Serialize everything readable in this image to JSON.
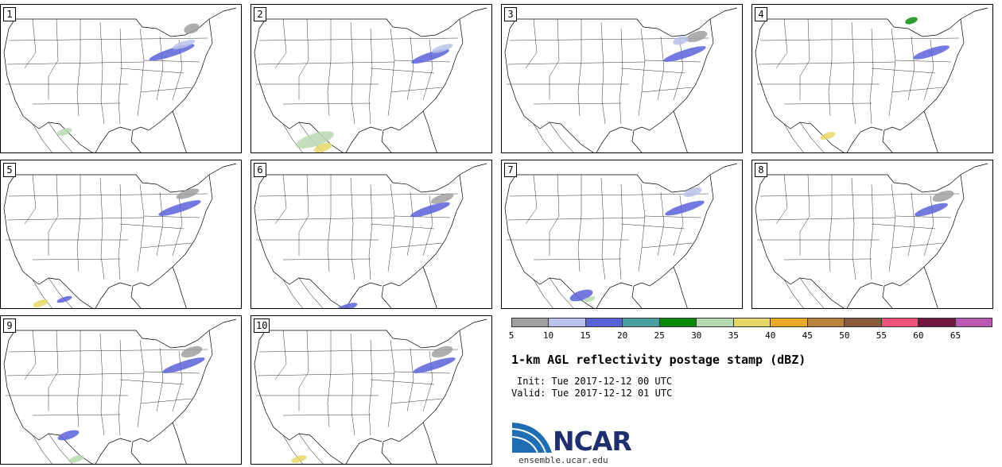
{
  "panels": [
    {
      "label": "1"
    },
    {
      "label": "2"
    },
    {
      "label": "3"
    },
    {
      "label": "4"
    },
    {
      "label": "5"
    },
    {
      "label": "6"
    },
    {
      "label": "7"
    },
    {
      "label": "8"
    },
    {
      "label": "9"
    },
    {
      "label": "10"
    }
  ],
  "colorbar": {
    "colors": [
      "#a0a0a0",
      "#b8c2ea",
      "#5a62d8",
      "#4a9ea0",
      "#0a8a0a",
      "#b8d8b0",
      "#e6d868",
      "#e8aa24",
      "#b8823a",
      "#8a5a3c",
      "#f0527c",
      "#6e1a3e",
      "#b858b0"
    ],
    "tick_labels": [
      "5",
      "10",
      "15",
      "20",
      "25",
      "30",
      "35",
      "40",
      "45",
      "50",
      "55",
      "60",
      "65"
    ]
  },
  "title": "1-km AGL reflectivity postage stamp (dBZ)",
  "init": "Init: Tue 2017-12-12 00 UTC",
  "valid": "Valid: Tue 2017-12-12 01 UTC",
  "logo": {
    "text": "NCAR"
  },
  "site": "ensemble.ucar.edu"
}
